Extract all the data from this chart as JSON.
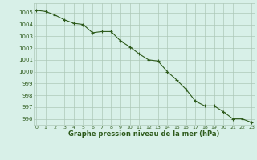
{
  "x": [
    0,
    1,
    2,
    3,
    4,
    5,
    6,
    7,
    8,
    9,
    10,
    11,
    12,
    13,
    14,
    15,
    16,
    17,
    18,
    19,
    20,
    21,
    22,
    23
  ],
  "y": [
    1005.2,
    1005.1,
    1004.8,
    1004.4,
    1004.1,
    1004.0,
    1003.3,
    1003.4,
    1003.4,
    1002.6,
    1002.1,
    1001.5,
    1001.0,
    1000.9,
    1000.0,
    999.3,
    998.5,
    997.5,
    997.1,
    997.1,
    996.6,
    996.0,
    996.0,
    995.7
  ],
  "line_color": "#2d5a1b",
  "marker_color": "#2d5a1b",
  "bg_color": "#d8f0e8",
  "grid_color": "#adc8b8",
  "xlabel": "Graphe pression niveau de la mer (hPa)",
  "xlabel_color": "#2d5a1b",
  "tick_color": "#2d5a1b",
  "ylim": [
    995.5,
    1005.8
  ],
  "yticks": [
    996,
    997,
    998,
    999,
    1000,
    1001,
    1002,
    1003,
    1004,
    1005
  ],
  "xticks": [
    0,
    1,
    2,
    3,
    4,
    5,
    6,
    7,
    8,
    9,
    10,
    11,
    12,
    13,
    14,
    15,
    16,
    17,
    18,
    19,
    20,
    21,
    22,
    23
  ],
  "figsize": [
    3.2,
    2.0
  ],
  "dpi": 100
}
